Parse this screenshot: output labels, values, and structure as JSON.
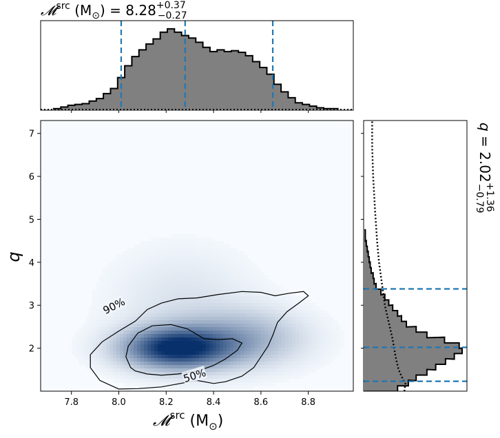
{
  "chart_data": [
    {
      "panel": "top-marginal",
      "type": "histogram",
      "title": {
        "symbol": "𝓜",
        "sup": "src",
        "unit": " (M",
        "unit_sub": "⊙",
        "unit_close": ")",
        "eq": " = 8.28",
        "plus": "+0.37",
        "minus": "−0.27"
      },
      "xlim": [
        7.67,
        8.99
      ],
      "bin_centers": [
        7.74,
        7.77,
        7.8,
        7.83,
        7.86,
        7.89,
        7.92,
        7.95,
        7.98,
        8.01,
        8.04,
        8.07,
        8.1,
        8.13,
        8.16,
        8.19,
        8.22,
        8.25,
        8.28,
        8.31,
        8.34,
        8.37,
        8.4,
        8.43,
        8.46,
        8.49,
        8.52,
        8.55,
        8.58,
        8.61,
        8.64,
        8.67,
        8.7,
        8.73,
        8.76,
        8.79,
        8.82,
        8.85,
        8.88,
        8.91
      ],
      "counts": [
        0.01,
        0.03,
        0.05,
        0.06,
        0.07,
        0.1,
        0.13,
        0.19,
        0.25,
        0.38,
        0.52,
        0.63,
        0.71,
        0.78,
        0.84,
        0.92,
        0.96,
        0.92,
        0.88,
        0.85,
        0.8,
        0.74,
        0.69,
        0.71,
        0.69,
        0.7,
        0.68,
        0.64,
        0.57,
        0.5,
        0.42,
        0.3,
        0.21,
        0.14,
        0.08,
        0.06,
        0.04,
        0.02,
        0.01,
        0.01
      ],
      "dashed_lines": [
        8.01,
        8.28,
        8.65
      ],
      "line_color": "#1f77b4",
      "fill_color": "#808080"
    },
    {
      "panel": "joint",
      "type": "heatmap",
      "xlabel": {
        "symbol": "𝓜",
        "sup": "src",
        "unit": " (M",
        "unit_sub": "⊙",
        "unit_close": ")"
      },
      "ylabel": "q",
      "xlim": [
        7.67,
        8.99
      ],
      "ylim": [
        1.0,
        7.3
      ],
      "xticks": [
        7.8,
        8.0,
        8.2,
        8.4,
        8.6,
        8.8
      ],
      "yticks": [
        2,
        3,
        4,
        5,
        6,
        7
      ],
      "colormap": "Blues",
      "density_peak": {
        "x": 8.24,
        "q": 2.0
      },
      "contour_90": [
        [
          8.0,
          1.05
        ],
        [
          7.92,
          1.25
        ],
        [
          7.88,
          1.55
        ],
        [
          7.88,
          1.85
        ],
        [
          7.93,
          2.15
        ],
        [
          8.0,
          2.4
        ],
        [
          8.07,
          2.63
        ],
        [
          8.12,
          2.9
        ],
        [
          8.18,
          3.05
        ],
        [
          8.25,
          3.15
        ],
        [
          8.33,
          3.17
        ],
        [
          8.42,
          3.25
        ],
        [
          8.52,
          3.32
        ],
        [
          8.6,
          3.3
        ],
        [
          8.66,
          3.22
        ],
        [
          8.72,
          3.28
        ],
        [
          8.78,
          3.32
        ],
        [
          8.8,
          3.22
        ],
        [
          8.76,
          3.05
        ],
        [
          8.71,
          2.85
        ],
        [
          8.67,
          2.6
        ],
        [
          8.65,
          2.3
        ],
        [
          8.63,
          2.05
        ],
        [
          8.6,
          1.8
        ],
        [
          8.57,
          1.55
        ],
        [
          8.52,
          1.35
        ],
        [
          8.45,
          1.22
        ],
        [
          8.4,
          1.18
        ],
        [
          8.33,
          1.25
        ],
        [
          8.26,
          1.18
        ],
        [
          8.18,
          1.1
        ],
        [
          8.08,
          1.06
        ],
        [
          8.0,
          1.05
        ]
      ],
      "contour_50": [
        [
          8.05,
          1.55
        ],
        [
          8.03,
          1.8
        ],
        [
          8.04,
          2.05
        ],
        [
          8.08,
          2.35
        ],
        [
          8.14,
          2.52
        ],
        [
          8.22,
          2.55
        ],
        [
          8.29,
          2.45
        ],
        [
          8.36,
          2.22
        ],
        [
          8.42,
          2.2
        ],
        [
          8.48,
          2.22
        ],
        [
          8.52,
          2.12
        ],
        [
          8.5,
          1.95
        ],
        [
          8.45,
          1.75
        ],
        [
          8.4,
          1.6
        ],
        [
          8.34,
          1.48
        ],
        [
          8.25,
          1.4
        ],
        [
          8.18,
          1.37
        ],
        [
          8.12,
          1.4
        ],
        [
          8.07,
          1.47
        ],
        [
          8.05,
          1.55
        ]
      ],
      "contour_labels": [
        {
          "text": "90%",
          "x": 7.98,
          "q": 2.98,
          "angle": -27
        },
        {
          "text": "50%",
          "x": 8.32,
          "q": 1.36,
          "angle": -17
        }
      ]
    },
    {
      "panel": "right-marginal",
      "type": "histogram",
      "orientation": "horizontal",
      "title": {
        "var": "q",
        "eq": " = 2.02",
        "plus": "+1.36",
        "minus": "−0.79"
      },
      "ylim": [
        1.0,
        7.3
      ],
      "bin_centers": [
        1.06,
        1.19,
        1.31,
        1.44,
        1.56,
        1.69,
        1.81,
        1.94,
        2.06,
        2.19,
        2.31,
        2.44,
        2.56,
        2.69,
        2.81,
        2.94,
        3.06,
        3.19,
        3.31,
        3.44,
        3.56,
        3.69,
        3.81,
        3.94,
        4.06,
        4.19,
        4.31,
        4.44,
        4.56,
        4.69
      ],
      "counts": [
        0.34,
        0.45,
        0.53,
        0.64,
        0.73,
        0.83,
        0.92,
        1.0,
        0.97,
        0.82,
        0.64,
        0.53,
        0.43,
        0.38,
        0.34,
        0.29,
        0.25,
        0.21,
        0.17,
        0.12,
        0.1,
        0.09,
        0.07,
        0.06,
        0.05,
        0.04,
        0.03,
        0.02,
        0.01,
        0.01
      ],
      "dashed_lines": [
        1.23,
        2.02,
        3.38
      ],
      "prior_curve": [
        [
          0.41,
          1.0
        ],
        [
          0.42,
          1.18
        ],
        [
          0.39,
          1.3
        ],
        [
          0.35,
          1.5
        ],
        [
          0.32,
          1.8
        ],
        [
          0.29,
          2.2
        ],
        [
          0.25,
          2.6
        ],
        [
          0.21,
          3.0
        ],
        [
          0.18,
          3.5
        ],
        [
          0.15,
          4.0
        ],
        [
          0.13,
          4.5
        ],
        [
          0.11,
          5.2
        ],
        [
          0.09,
          6.0
        ],
        [
          0.08,
          6.7
        ],
        [
          0.08,
          7.3
        ]
      ],
      "line_color": "#1f77b4",
      "fill_color": "#808080"
    }
  ]
}
